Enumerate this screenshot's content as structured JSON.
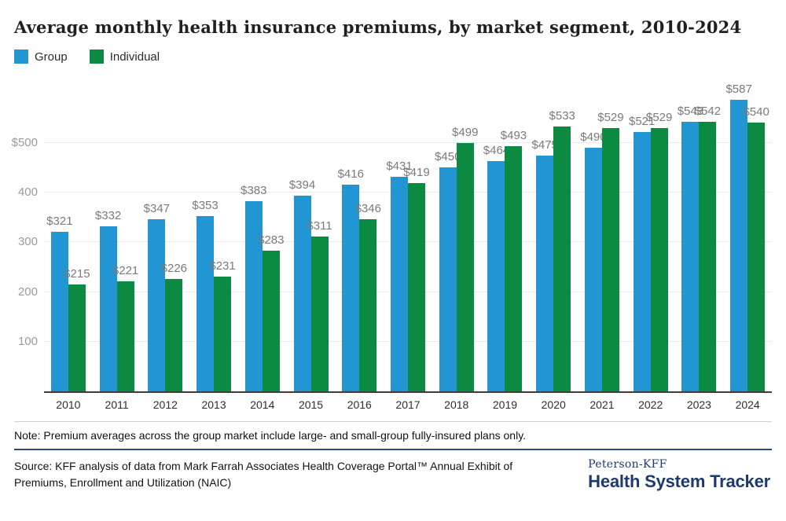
{
  "title": "Average monthly health insurance premiums, by market segment, 2010-2024",
  "legend": [
    {
      "label": "Group",
      "color": "#2196d3"
    },
    {
      "label": "Individual",
      "color": "#0c8a42"
    }
  ],
  "chart_data": {
    "type": "bar",
    "title": "Average monthly health insurance premiums, by market segment, 2010-2024",
    "categories": [
      "2010",
      "2011",
      "2012",
      "2013",
      "2014",
      "2015",
      "2016",
      "2017",
      "2018",
      "2019",
      "2020",
      "2021",
      "2022",
      "2023",
      "2024"
    ],
    "series": [
      {
        "name": "Group",
        "color": "#2196d3",
        "values": [
          321,
          332,
          347,
          353,
          383,
          394,
          416,
          431,
          450,
          464,
          475,
          490,
          521,
          543,
          587
        ]
      },
      {
        "name": "Individual",
        "color": "#0c8a42",
        "values": [
          215,
          221,
          226,
          231,
          283,
          311,
          346,
          419,
          499,
          493,
          533,
          529,
          529,
          542,
          540
        ]
      }
    ],
    "xlabel": "",
    "ylabel": "",
    "ylim": [
      0,
      634
    ],
    "yticks": [
      {
        "value": 100,
        "label": "100"
      },
      {
        "value": 200,
        "label": "200"
      },
      {
        "value": 300,
        "label": "300"
      },
      {
        "value": 400,
        "label": "400"
      },
      {
        "value": 500,
        "label": "$500"
      }
    ],
    "grid": true,
    "legend_position": "top-left",
    "value_label_prefix": "$"
  },
  "note": "Note: Premium averages across the group market include large- and small-group fully-insured plans only.",
  "source": {
    "line1": "Source: KFF analysis of data from Mark Farrah Associates Health Coverage Portal™ Annual Exhibit of",
    "line2": "Premiums, Enrollment and Utilization (NAIC)"
  },
  "logo": {
    "top": "Peterson-KFF",
    "bottom": "Health System Tracker"
  },
  "colors": {
    "group_bar": "#2196d3",
    "individual_bar": "#0c8a42",
    "value_label": "#7a7a7a",
    "axis_line": "#3d3d3d",
    "gridline": "#e9e9e9",
    "navy_rule": "#2b4a7d",
    "logo_navy": "#1e3a6d"
  }
}
